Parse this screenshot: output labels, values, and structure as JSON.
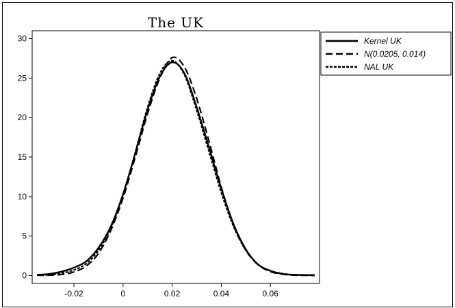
{
  "chart_data": {
    "type": "line",
    "title": "The UK",
    "xlabel": "",
    "ylabel": "",
    "xlim": [
      -0.037,
      0.08
    ],
    "ylim": [
      -1,
      31
    ],
    "x_ticks": [
      -0.02,
      0,
      0.02,
      0.04,
      0.06
    ],
    "x_tick_labels": [
      "-0.02",
      "0",
      "0.02",
      "0.04",
      "0.06"
    ],
    "y_ticks": [
      0,
      5,
      10,
      15,
      20,
      25,
      30
    ],
    "y_tick_labels": [
      "0",
      "5",
      "10",
      "15",
      "20",
      "25",
      "30"
    ],
    "grid": false,
    "legend_position": "outside-top-right",
    "series": [
      {
        "name": "Kernel UK",
        "style": "solid",
        "color": "#000000",
        "x": [
          -0.035,
          -0.03,
          -0.025,
          -0.02,
          -0.015,
          -0.01,
          -0.005,
          0,
          0.005,
          0.01,
          0.015,
          0.02,
          0.025,
          0.03,
          0.035,
          0.04,
          0.045,
          0.05,
          0.055,
          0.06,
          0.065,
          0.07,
          0.078
        ],
        "y": [
          0.1,
          0.2,
          0.5,
          1.0,
          1.8,
          3.5,
          6.2,
          10.3,
          15.5,
          21.0,
          25.2,
          27.0,
          25.6,
          21.3,
          16.2,
          11.0,
          6.5,
          3.3,
          1.4,
          0.6,
          0.2,
          0.1,
          0.05
        ]
      },
      {
        "name": "N(0.0205, 0.014)",
        "style": "dashed",
        "color": "#000000",
        "x": [
          -0.035,
          -0.03,
          -0.025,
          -0.02,
          -0.015,
          -0.01,
          -0.005,
          0,
          0.005,
          0.01,
          0.015,
          0.02,
          0.025,
          0.03,
          0.035,
          0.04,
          0.045,
          0.05,
          0.055,
          0.06,
          0.065,
          0.07,
          0.078
        ],
        "y": [
          0.02,
          0.04,
          0.13,
          0.45,
          1.2,
          2.8,
          5.7,
          9.8,
          15.0,
          20.5,
          25.0,
          27.6,
          26.4,
          22.4,
          17.0,
          11.2,
          6.4,
          3.2,
          1.35,
          0.5,
          0.16,
          0.04,
          0.01
        ]
      },
      {
        "name": "NAL UK",
        "style": "dotted",
        "color": "#000000",
        "x": [
          -0.035,
          -0.03,
          -0.025,
          -0.02,
          -0.015,
          -0.01,
          -0.005,
          0,
          0.005,
          0.01,
          0.015,
          0.02,
          0.025,
          0.03,
          0.035,
          0.04,
          0.045,
          0.05,
          0.055,
          0.06,
          0.065,
          0.07,
          0.078
        ],
        "y": [
          0.05,
          0.1,
          0.3,
          0.7,
          1.5,
          3.2,
          6.0,
          10.2,
          15.6,
          21.3,
          25.6,
          27.2,
          25.4,
          20.9,
          15.7,
          10.5,
          6.2,
          3.2,
          1.4,
          0.6,
          0.25,
          0.08,
          0.03
        ]
      }
    ]
  }
}
